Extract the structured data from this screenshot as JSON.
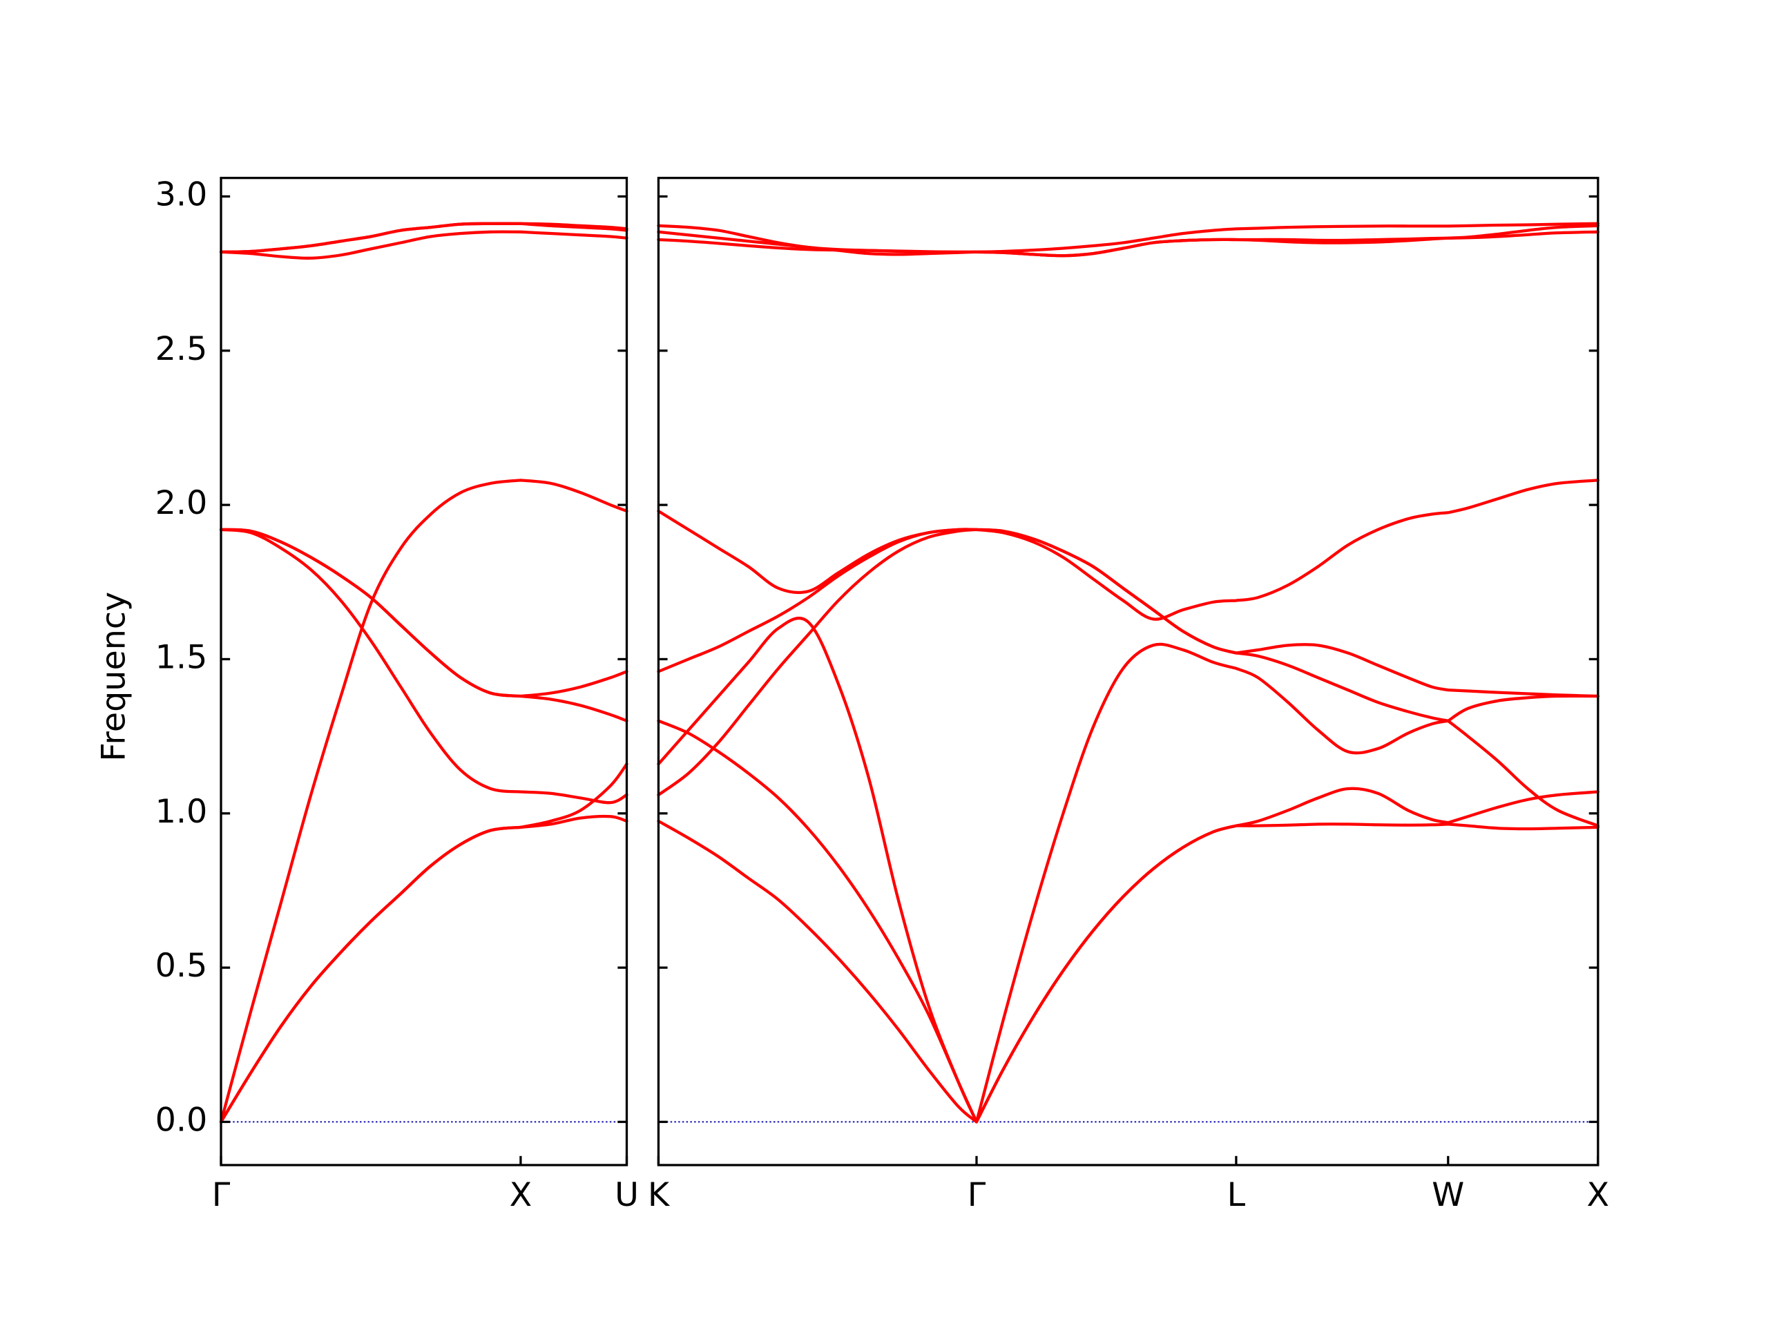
{
  "chart_data": [
    {
      "type": "line",
      "ylabel": "Frequency",
      "x": [
        0,
        0.1,
        0.2,
        0.3,
        0.4,
        0.5,
        0.6,
        0.7,
        0.8,
        0.9,
        1.0,
        1.1,
        1.2,
        1.3,
        1.354
      ],
      "xlim": [
        0,
        1.354
      ],
      "xticks": [
        {
          "value": 0,
          "label": "Γ"
        },
        {
          "value": 1.0,
          "label": "X"
        },
        {
          "value": 1.354,
          "label": "U"
        }
      ],
      "ylim": [
        -0.14,
        3.06
      ],
      "yticks": [
        {
          "value": 0,
          "label": "0.0"
        },
        0.5,
        {
          "value": 1,
          "label": "1.0"
        },
        1.5,
        {
          "value": 2,
          "label": "2.0"
        },
        2.5,
        {
          "value": 3,
          "label": "3.0"
        }
      ],
      "hline": {
        "value": 0,
        "color": "#0000aa"
      },
      "series": [
        {
          "color": "#ff0000",
          "values": [
            0,
            0.16,
            0.31,
            0.44,
            0.55,
            0.65,
            0.74,
            0.83,
            0.9,
            0.945,
            0.955,
            0.965,
            0.985,
            0.99,
            0.975
          ]
        },
        {
          "color": "#ff0000",
          "values": [
            0,
            0.16,
            0.31,
            0.44,
            0.55,
            0.65,
            0.74,
            0.83,
            0.9,
            0.945,
            0.955,
            0.975,
            1.01,
            1.09,
            1.16
          ]
        },
        {
          "color": "#ff0000",
          "values": [
            0,
            0.36,
            0.71,
            1.06,
            1.38,
            1.68,
            1.86,
            1.97,
            2.04,
            2.07,
            2.08,
            2.07,
            2.04,
            2.0,
            1.98
          ]
        },
        {
          "color": "#ff0000",
          "values": [
            1.92,
            1.91,
            1.86,
            1.79,
            1.69,
            1.56,
            1.41,
            1.26,
            1.14,
            1.08,
            1.07,
            1.065,
            1.05,
            1.035,
            1.06
          ]
        },
        {
          "color": "#ff0000",
          "values": [
            1.92,
            1.915,
            1.88,
            1.83,
            1.77,
            1.7,
            1.61,
            1.52,
            1.44,
            1.39,
            1.38,
            1.39,
            1.41,
            1.44,
            1.46
          ]
        },
        {
          "color": "#ff0000",
          "values": [
            1.92,
            1.915,
            1.88,
            1.83,
            1.77,
            1.7,
            1.61,
            1.52,
            1.44,
            1.39,
            1.38,
            1.37,
            1.35,
            1.32,
            1.3
          ]
        },
        {
          "color": "#ff0000",
          "values": [
            2.82,
            2.815,
            2.805,
            2.8,
            2.81,
            2.83,
            2.85,
            2.87,
            2.88,
            2.885,
            2.885,
            2.88,
            2.875,
            2.87,
            2.865
          ]
        },
        {
          "color": "#ff0000",
          "values": [
            2.82,
            2.822,
            2.83,
            2.84,
            2.855,
            2.87,
            2.89,
            2.9,
            2.91,
            2.912,
            2.912,
            2.91,
            2.905,
            2.9,
            2.895
          ]
        },
        {
          "color": "#ff0000",
          "values": [
            2.82,
            2.822,
            2.83,
            2.84,
            2.855,
            2.87,
            2.89,
            2.9,
            2.91,
            2.912,
            2.912,
            2.905,
            2.9,
            2.895,
            2.89
          ]
        }
      ]
    },
    {
      "type": "line",
      "x": [
        0,
        0.1,
        0.2,
        0.3,
        0.4,
        0.5,
        0.6,
        0.7,
        0.8,
        0.9,
        1.0,
        1.061,
        1.15,
        1.25,
        1.35,
        1.45,
        1.55,
        1.65,
        1.75,
        1.85,
        1.927,
        2.0,
        2.1,
        2.2,
        2.3,
        2.4,
        2.5,
        2.58,
        2.634,
        2.7,
        2.8,
        2.9,
        3.0,
        3.134
      ],
      "xlim": [
        0,
        3.134
      ],
      "xticks": [
        {
          "value": 0,
          "label": "K"
        },
        {
          "value": 1.061,
          "label": "Γ"
        },
        {
          "value": 1.927,
          "label": "L"
        },
        {
          "value": 2.634,
          "label": "W"
        },
        {
          "value": 3.134,
          "label": "X"
        }
      ],
      "ylim": [
        -0.14,
        3.06
      ],
      "yticks": [
        0,
        0.5,
        1,
        1.5,
        2,
        2.5,
        3
      ],
      "hline": {
        "value": 0,
        "color": "#0000aa"
      },
      "series": [
        {
          "color": "#ff0000",
          "values": [
            0.975,
            0.92,
            0.86,
            0.79,
            0.72,
            0.63,
            0.53,
            0.42,
            0.3,
            0.17,
            0.05,
            0,
            0.17,
            0.34,
            0.49,
            0.62,
            0.73,
            0.82,
            0.89,
            0.94,
            0.96,
            0.96,
            0.962,
            0.965,
            0.965,
            0.963,
            0.962,
            0.963,
            0.965,
            0.96,
            0.952,
            0.95,
            0.952,
            0.955
          ]
        },
        {
          "color": "#ff0000",
          "values": [
            1.3,
            1.26,
            1.2,
            1.13,
            1.05,
            0.95,
            0.83,
            0.69,
            0.53,
            0.35,
            0.13,
            0,
            0.17,
            0.34,
            0.49,
            0.62,
            0.73,
            0.82,
            0.89,
            0.94,
            0.96,
            0.975,
            1.01,
            1.05,
            1.08,
            1.065,
            1.01,
            0.98,
            0.97,
            0.99,
            1.02,
            1.045,
            1.06,
            1.07
          ]
        },
        {
          "color": "#ff0000",
          "values": [
            1.16,
            1.27,
            1.38,
            1.49,
            1.6,
            1.62,
            1.42,
            1.12,
            0.72,
            0.38,
            0.13,
            0,
            0.33,
            0.68,
            1.0,
            1.28,
            1.47,
            1.545,
            1.53,
            1.49,
            1.47,
            1.44,
            1.36,
            1.27,
            1.2,
            1.21,
            1.26,
            1.29,
            1.3,
            1.25,
            1.17,
            1.08,
            1.01,
            0.96
          ]
        },
        {
          "color": "#ff0000",
          "values": [
            1.06,
            1.13,
            1.23,
            1.35,
            1.47,
            1.58,
            1.69,
            1.78,
            1.85,
            1.895,
            1.915,
            1.92,
            1.91,
            1.88,
            1.83,
            1.76,
            1.69,
            1.63,
            1.66,
            1.685,
            1.69,
            1.7,
            1.74,
            1.8,
            1.87,
            1.92,
            1.955,
            1.97,
            1.975,
            1.99,
            2.02,
            2.05,
            2.07,
            2.08
          ]
        },
        {
          "color": "#ff0000",
          "values": [
            1.46,
            1.5,
            1.54,
            1.59,
            1.64,
            1.7,
            1.77,
            1.83,
            1.88,
            1.91,
            1.92,
            1.92,
            1.915,
            1.89,
            1.85,
            1.8,
            1.73,
            1.66,
            1.59,
            1.54,
            1.52,
            1.51,
            1.48,
            1.44,
            1.4,
            1.36,
            1.33,
            1.31,
            1.3,
            1.34,
            1.365,
            1.375,
            1.38,
            1.38
          ]
        },
        {
          "color": "#ff0000",
          "values": [
            1.98,
            1.92,
            1.86,
            1.8,
            1.73,
            1.72,
            1.78,
            1.84,
            1.885,
            1.91,
            1.92,
            1.92,
            1.915,
            1.89,
            1.85,
            1.8,
            1.73,
            1.66,
            1.59,
            1.54,
            1.52,
            1.53,
            1.545,
            1.545,
            1.52,
            1.48,
            1.44,
            1.41,
            1.4,
            1.397,
            1.392,
            1.388,
            1.384,
            1.38
          ]
        },
        {
          "color": "#ff0000",
          "values": [
            2.905,
            2.9,
            2.89,
            2.87,
            2.85,
            2.835,
            2.828,
            2.825,
            2.822,
            2.82,
            2.82,
            2.82,
            2.822,
            2.826,
            2.832,
            2.84,
            2.85,
            2.865,
            2.88,
            2.89,
            2.895,
            2.897,
            2.9,
            2.902,
            2.903,
            2.904,
            2.904,
            2.904,
            2.904,
            2.905,
            2.907,
            2.908,
            2.91,
            2.912
          ]
        },
        {
          "color": "#ff0000",
          "values": [
            2.885,
            2.875,
            2.865,
            2.855,
            2.845,
            2.835,
            2.825,
            2.815,
            2.812,
            2.815,
            2.818,
            2.82,
            2.818,
            2.812,
            2.808,
            2.815,
            2.832,
            2.85,
            2.857,
            2.86,
            2.86,
            2.858,
            2.853,
            2.85,
            2.85,
            2.852,
            2.857,
            2.862,
            2.865,
            2.866,
            2.87,
            2.876,
            2.882,
            2.885
          ]
        },
        {
          "color": "#ff0000",
          "values": [
            2.86,
            2.855,
            2.848,
            2.84,
            2.833,
            2.828,
            2.826,
            2.825,
            2.823,
            2.821,
            2.82,
            2.82,
            2.818,
            2.812,
            2.808,
            2.815,
            2.832,
            2.85,
            2.857,
            2.86,
            2.86,
            2.86,
            2.86,
            2.858,
            2.858,
            2.86,
            2.862,
            2.864,
            2.865,
            2.868,
            2.878,
            2.89,
            2.9,
            2.905
          ]
        }
      ]
    }
  ]
}
